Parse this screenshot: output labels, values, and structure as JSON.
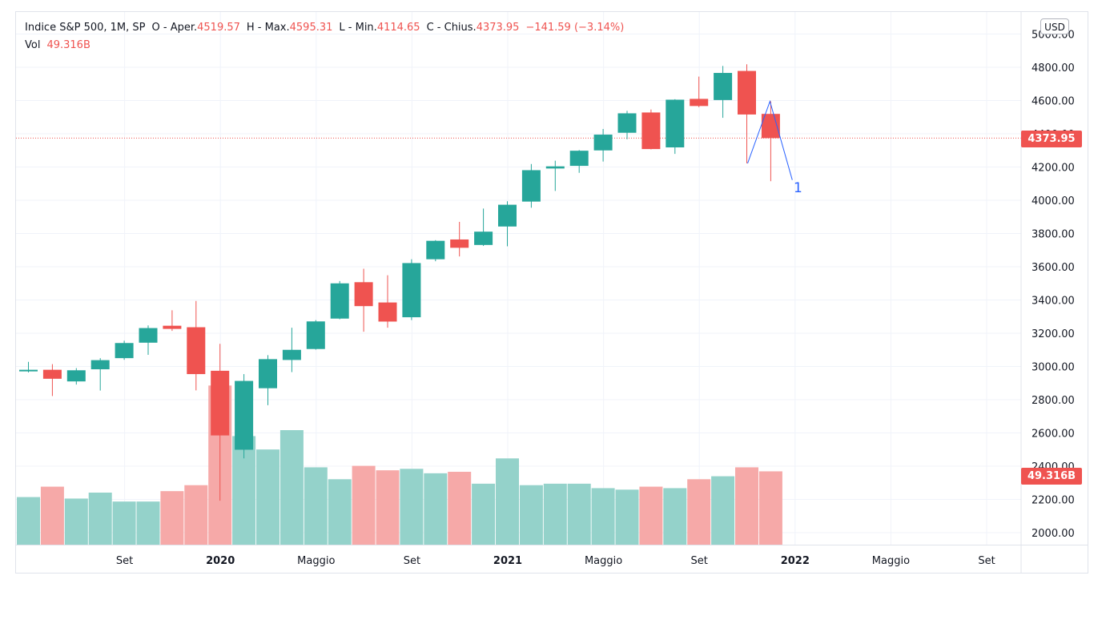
{
  "legend": {
    "symbol": "Indice S&P 500, 1M, SP",
    "open_label": "O - Aper.",
    "open_value": "4519.57",
    "high_label": "H - Max.",
    "high_value": "4595.31",
    "low_label": "L - Min.",
    "low_value": "4114.65",
    "close_label": "C - Chius.",
    "close_value": "4373.95",
    "change_value": "−141.59 (−3.14%)",
    "vol_label": "Vol",
    "vol_value": "49.316B"
  },
  "currency": "USD",
  "badges": {
    "close_price": "4373.95",
    "volume": "49.316B"
  },
  "annotation": {
    "label": "1",
    "color": "#2962ff"
  },
  "colors": {
    "up": "#26a69a",
    "down": "#ef5350",
    "volume_up": "#94d2ca",
    "volume_down": "#f6a9a8",
    "grid": "#f0f3fa",
    "axis_text": "#131722"
  },
  "chart_data": {
    "type": "candlestick",
    "timeframe": "1M",
    "y_axis": {
      "ylim": [
        1900,
        5050
      ],
      "ticks": [
        "2000.00",
        "2200.00",
        "2400.00",
        "2600.00",
        "2800.00",
        "3000.00",
        "3200.00",
        "3400.00",
        "3600.00",
        "3800.00",
        "4000.00",
        "4200.00",
        "4400.00",
        "4600.00",
        "4800.00",
        "5000.00"
      ]
    },
    "x_axis": {
      "labels": [
        {
          "text": "Set",
          "index": 2,
          "bold": false
        },
        {
          "text": "2020",
          "index": 6,
          "bold": true
        },
        {
          "text": "Maggio",
          "index": 10,
          "bold": false
        },
        {
          "text": "Set",
          "index": 14,
          "bold": false
        },
        {
          "text": "2021",
          "index": 18,
          "bold": true
        },
        {
          "text": "Maggio",
          "index": 22,
          "bold": false
        },
        {
          "text": "Set",
          "index": 26,
          "bold": false
        },
        {
          "text": "2022",
          "index": 30,
          "bold": true
        },
        {
          "text": "Maggio",
          "index": 34,
          "bold": false
        },
        {
          "text": "Set",
          "index": 38,
          "bold": false
        }
      ]
    },
    "candles": [
      {
        "o": 2978,
        "h": 3028,
        "l": 2964,
        "c": 2980,
        "vol": 3.2
      },
      {
        "o": 2980,
        "h": 3014,
        "l": 2822,
        "c": 2926,
        "vol": 3.9
      },
      {
        "o": 2910,
        "h": 2990,
        "l": 2891,
        "c": 2977,
        "vol": 3.1
      },
      {
        "o": 2983,
        "h": 3050,
        "l": 2855,
        "c": 3038,
        "vol": 3.5
      },
      {
        "o": 3050,
        "h": 3155,
        "l": 3040,
        "c": 3141,
        "vol": 2.9
      },
      {
        "o": 3143,
        "h": 3247,
        "l": 3070,
        "c": 3231,
        "vol": 2.9
      },
      {
        "o": 3245,
        "h": 3338,
        "l": 3214,
        "c": 3226,
        "vol": 3.6
      },
      {
        "o": 3236,
        "h": 3394,
        "l": 2856,
        "c": 2954,
        "vol": 4.0
      },
      {
        "o": 2974,
        "h": 3136,
        "l": 2192,
        "c": 2585,
        "vol": 10.7
      },
      {
        "o": 2499,
        "h": 2954,
        "l": 2447,
        "c": 2913,
        "vol": 7.3
      },
      {
        "o": 2869,
        "h": 3068,
        "l": 2767,
        "c": 3044,
        "vol": 6.4
      },
      {
        "o": 3039,
        "h": 3233,
        "l": 2966,
        "c": 3100,
        "vol": 7.7
      },
      {
        "o": 3105,
        "h": 3279,
        "l": 3101,
        "c": 3271,
        "vol": 5.2
      },
      {
        "o": 3288,
        "h": 3514,
        "l": 3284,
        "c": 3500,
        "vol": 4.4
      },
      {
        "o": 3507,
        "h": 3588,
        "l": 3209,
        "c": 3363,
        "vol": 5.3
      },
      {
        "o": 3385,
        "h": 3549,
        "l": 3233,
        "c": 3270,
        "vol": 5.0
      },
      {
        "o": 3296,
        "h": 3645,
        "l": 3279,
        "c": 3622,
        "vol": 5.1
      },
      {
        "o": 3645,
        "h": 3760,
        "l": 3633,
        "c": 3756,
        "vol": 4.8
      },
      {
        "o": 3764,
        "h": 3870,
        "l": 3662,
        "c": 3714,
        "vol": 4.9
      },
      {
        "o": 3731,
        "h": 3950,
        "l": 3725,
        "c": 3811,
        "vol": 4.1
      },
      {
        "o": 3842,
        "h": 3994,
        "l": 3723,
        "c": 3973,
        "vol": 5.8
      },
      {
        "o": 3992,
        "h": 4218,
        "l": 3955,
        "c": 4181,
        "vol": 4.0
      },
      {
        "o": 4191,
        "h": 4238,
        "l": 4056,
        "c": 4204,
        "vol": 4.1
      },
      {
        "o": 4207,
        "h": 4302,
        "l": 4165,
        "c": 4298,
        "vol": 4.1
      },
      {
        "o": 4300,
        "h": 4429,
        "l": 4233,
        "c": 4395,
        "vol": 3.8
      },
      {
        "o": 4406,
        "h": 4538,
        "l": 4367,
        "c": 4523,
        "vol": 3.7
      },
      {
        "o": 4528,
        "h": 4546,
        "l": 4306,
        "c": 4308,
        "vol": 3.9
      },
      {
        "o": 4318,
        "h": 4608,
        "l": 4279,
        "c": 4605,
        "vol": 3.8
      },
      {
        "o": 4610,
        "h": 4744,
        "l": 4560,
        "c": 4567,
        "vol": 4.4
      },
      {
        "o": 4603,
        "h": 4808,
        "l": 4496,
        "c": 4766,
        "vol": 4.6
      },
      {
        "o": 4778,
        "h": 4818,
        "l": 4222,
        "c": 4516,
        "vol": 5.2
      },
      {
        "o": 4519.57,
        "h": 4595.31,
        "l": 4114.65,
        "c": 4373.95,
        "vol": 4.93
      }
    ],
    "volume_scale_max": 14.0,
    "current_price_line": 4373.95
  }
}
